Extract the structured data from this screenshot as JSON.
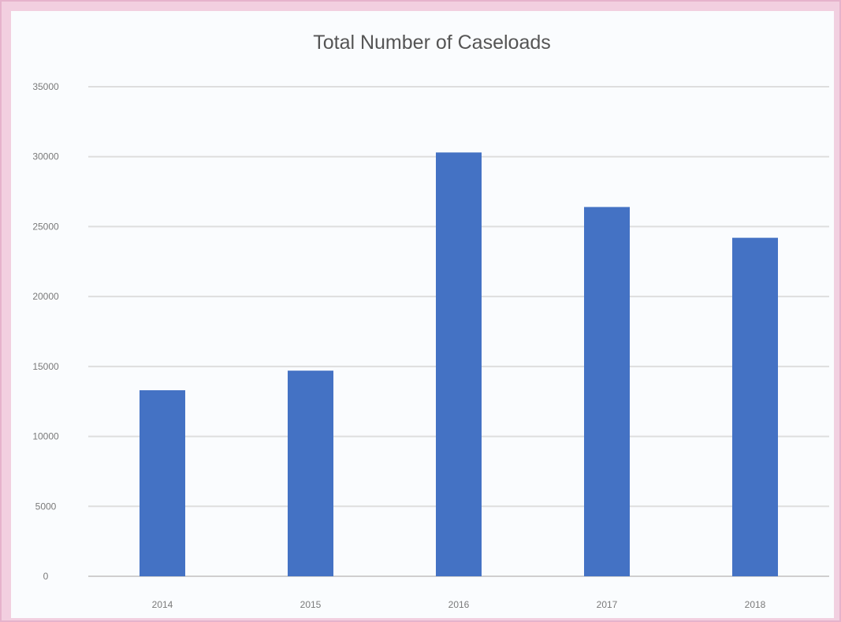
{
  "chart_data": {
    "type": "bar",
    "title": "Total Number of Caseloads",
    "xlabel": "",
    "ylabel": "",
    "categories": [
      "2014",
      "2015",
      "2016",
      "2017",
      "2018"
    ],
    "values": [
      13300,
      14700,
      30300,
      26400,
      24200
    ],
    "ylim": [
      0,
      35000
    ],
    "y_ticks": [
      "0",
      "5000",
      "10000",
      "15000",
      "20000",
      "25000",
      "30000",
      "35000"
    ],
    "grid": true,
    "legend": "none",
    "bar_color": "#4472c4"
  }
}
